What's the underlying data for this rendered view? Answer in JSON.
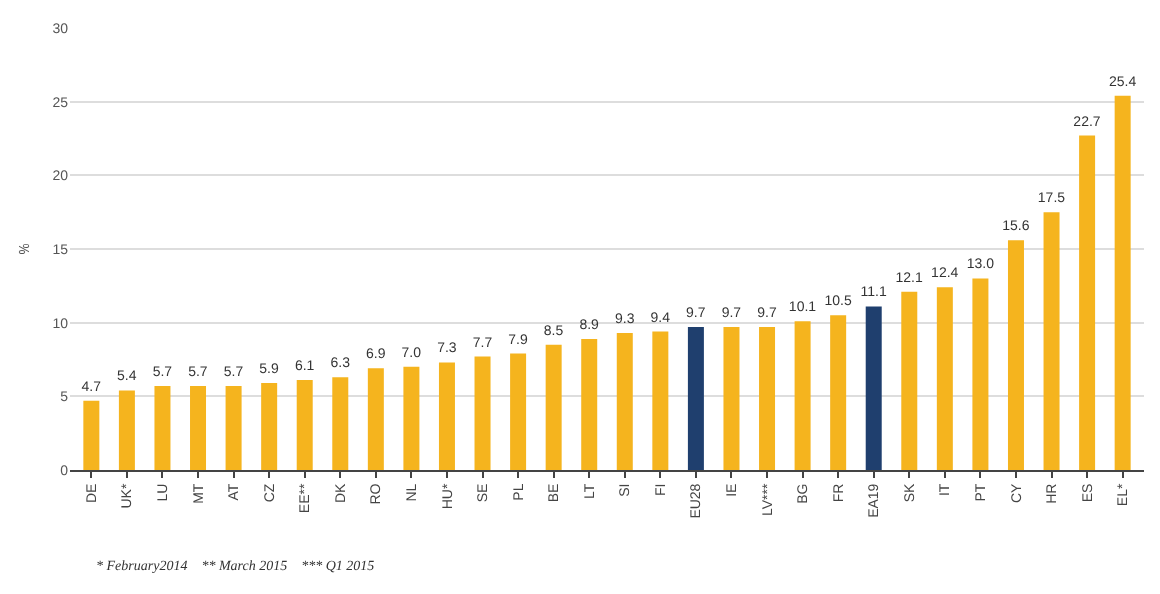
{
  "chart_data": {
    "type": "bar",
    "ylabel": "%",
    "categories": [
      "DE",
      "UK*",
      "LU",
      "MT",
      "AT",
      "CZ",
      "EE**",
      "DK",
      "RO",
      "NL",
      "HU*",
      "SE",
      "PL",
      "BE",
      "LT",
      "SI",
      "FI",
      "EU28",
      "IE",
      "LV***",
      "BG",
      "FR",
      "EA19",
      "SK",
      "IT",
      "PT",
      "CY",
      "HR",
      "ES",
      "EL*"
    ],
    "values": [
      4.7,
      5.4,
      5.7,
      5.7,
      5.7,
      5.9,
      6.1,
      6.3,
      6.9,
      7.0,
      7.3,
      7.7,
      7.9,
      8.5,
      8.9,
      9.3,
      9.4,
      9.7,
      9.7,
      9.7,
      10.1,
      10.5,
      11.1,
      12.1,
      12.4,
      13.0,
      15.6,
      17.5,
      22.7,
      25.4
    ],
    "colors": [
      "#f5b41e",
      "#f5b41e",
      "#f5b41e",
      "#f5b41e",
      "#f5b41e",
      "#f5b41e",
      "#f5b41e",
      "#f5b41e",
      "#f5b41e",
      "#f5b41e",
      "#f5b41e",
      "#f5b41e",
      "#f5b41e",
      "#f5b41e",
      "#f5b41e",
      "#f5b41e",
      "#f5b41e",
      "#1f3f6e",
      "#f5b41e",
      "#f5b41e",
      "#f5b41e",
      "#f5b41e",
      "#1f3f6e",
      "#f5b41e",
      "#f5b41e",
      "#f5b41e",
      "#f5b41e",
      "#f5b41e",
      "#f5b41e",
      "#f5b41e"
    ],
    "value_labels": [
      "4.7",
      "5.4",
      "5.7",
      "5.7",
      "5.7",
      "5.9",
      "6.1",
      "6.3",
      "6.9",
      "7.0",
      "7.3",
      "7.7",
      "7.9",
      "8.5",
      "8.9",
      "9.3",
      "9.4",
      "9.7",
      "9.7",
      "9.7",
      "10.1",
      "10.5",
      "11.1",
      "12.1",
      "12.4",
      "13.0",
      "15.6",
      "17.5",
      "22.7",
      "25.4"
    ],
    "ylim": [
      0,
      30
    ],
    "yticks": [
      0,
      5,
      10,
      15,
      20,
      25,
      30
    ],
    "grid": "y",
    "annotations": [
      "* February2014    ** March 2015    *** Q1 2015"
    ]
  }
}
